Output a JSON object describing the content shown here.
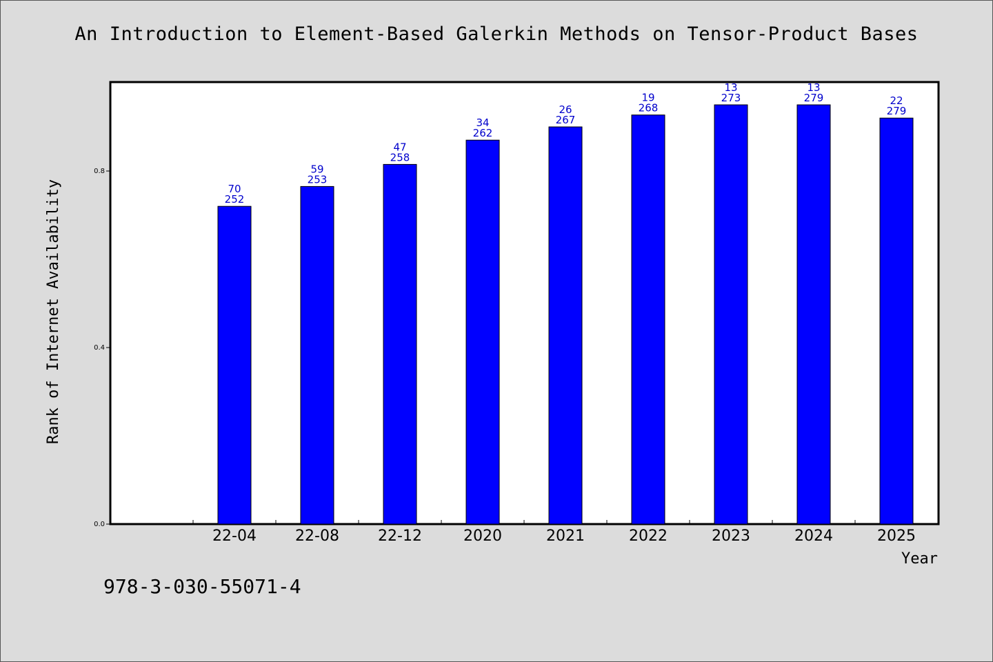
{
  "chart_data": {
    "type": "bar",
    "title": "An Introduction to Element-Based Galerkin Methods on Tensor-Product Bases",
    "xlabel": "Year",
    "ylabel": "Rank of Internet Availability",
    "categories": [
      "22-04",
      "22-08",
      "22-12",
      "2020",
      "2021",
      "2022",
      "2023",
      "2024",
      "2025"
    ],
    "values": [
      0.72,
      0.765,
      0.815,
      0.87,
      0.9,
      0.927,
      0.95,
      0.95,
      0.92
    ],
    "bar_labels_top": [
      "70",
      "59",
      "47",
      "34",
      "26",
      "19",
      "13",
      "13",
      "22"
    ],
    "bar_labels_bottom": [
      "252",
      "253",
      "258",
      "262",
      "267",
      "268",
      "273",
      "279",
      "279"
    ],
    "yticks": [
      0.0,
      0.4,
      0.8
    ],
    "ytick_labels": [
      "0.0",
      "0.4",
      "0.8"
    ],
    "ylim": [
      0,
      1.0
    ],
    "grid": false,
    "colors": {
      "bar": "#0000ff",
      "bar_label": "#0000cc",
      "plot_bg": "#ffffff",
      "page_bg": "#dcdcdc"
    }
  },
  "footer": {
    "code": "978-3-030-55071-4"
  }
}
